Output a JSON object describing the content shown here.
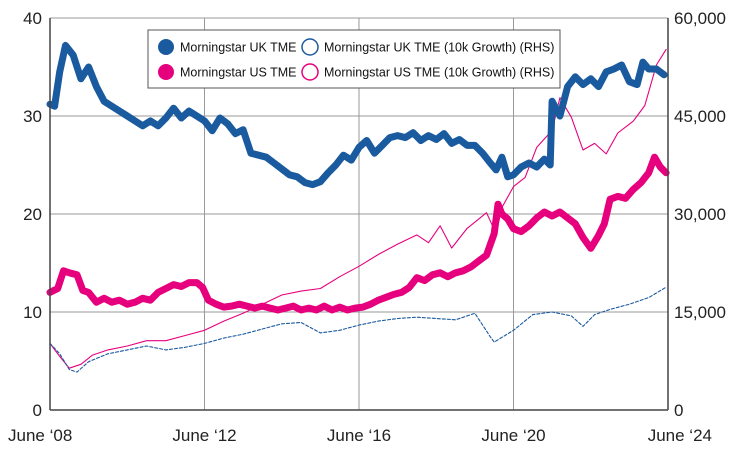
{
  "chart_data": {
    "type": "line",
    "title": "",
    "xlabel": "",
    "ylabel_left": "",
    "ylabel_right": "",
    "x_ticks": [
      "June ‘08",
      "June ‘12",
      "June ‘16",
      "June ‘20",
      "June ‘24"
    ],
    "x_range": [
      2008.5,
      2024.5
    ],
    "y_left_ticks": [
      "0",
      "10",
      "20",
      "30",
      "40"
    ],
    "y_left_range": [
      0,
      40
    ],
    "y_right_ticks": [
      "0",
      "15,000",
      "30,000",
      "45,000",
      "60,000"
    ],
    "y_right_range": [
      0,
      60000
    ],
    "grid": "vertical and horizontal",
    "legend_position": "top-center",
    "series": [
      {
        "name": "Morningstar UK TME",
        "axis": "left",
        "style": "thick",
        "color": "#1a5a9e",
        "legend_marker": "filled-circle",
        "points": [
          [
            2008.5,
            31.2
          ],
          [
            2008.62,
            31.0
          ],
          [
            2008.75,
            34.5
          ],
          [
            2008.9,
            37.2
          ],
          [
            2009.1,
            36.2
          ],
          [
            2009.3,
            33.8
          ],
          [
            2009.5,
            35.0
          ],
          [
            2009.7,
            33.0
          ],
          [
            2009.9,
            31.5
          ],
          [
            2010.1,
            31.0
          ],
          [
            2010.3,
            30.5
          ],
          [
            2010.5,
            30.0
          ],
          [
            2010.7,
            29.5
          ],
          [
            2010.9,
            29.0
          ],
          [
            2011.1,
            29.5
          ],
          [
            2011.3,
            29.0
          ],
          [
            2011.5,
            29.8
          ],
          [
            2011.7,
            30.8
          ],
          [
            2011.9,
            29.8
          ],
          [
            2012.1,
            30.5
          ],
          [
            2012.3,
            30.0
          ],
          [
            2012.5,
            29.5
          ],
          [
            2012.7,
            28.5
          ],
          [
            2012.9,
            29.8
          ],
          [
            2013.1,
            29.2
          ],
          [
            2013.3,
            28.2
          ],
          [
            2013.5,
            28.6
          ],
          [
            2013.7,
            26.2
          ],
          [
            2013.9,
            26.0
          ],
          [
            2014.1,
            25.8
          ],
          [
            2014.3,
            25.2
          ],
          [
            2014.5,
            24.6
          ],
          [
            2014.7,
            24.0
          ],
          [
            2014.9,
            23.8
          ],
          [
            2015.1,
            23.2
          ],
          [
            2015.3,
            23.0
          ],
          [
            2015.5,
            23.3
          ],
          [
            2015.7,
            24.2
          ],
          [
            2015.9,
            25.0
          ],
          [
            2016.1,
            26.0
          ],
          [
            2016.3,
            25.5
          ],
          [
            2016.5,
            26.8
          ],
          [
            2016.7,
            27.5
          ],
          [
            2016.9,
            26.2
          ],
          [
            2017.1,
            27.0
          ],
          [
            2017.3,
            27.8
          ],
          [
            2017.5,
            28.0
          ],
          [
            2017.7,
            27.8
          ],
          [
            2017.9,
            28.3
          ],
          [
            2018.1,
            27.5
          ],
          [
            2018.3,
            28.0
          ],
          [
            2018.5,
            27.6
          ],
          [
            2018.7,
            28.2
          ],
          [
            2018.9,
            27.2
          ],
          [
            2019.1,
            27.6
          ],
          [
            2019.3,
            27.0
          ],
          [
            2019.5,
            27.0
          ],
          [
            2019.7,
            26.2
          ],
          [
            2019.9,
            25.2
          ],
          [
            2020.05,
            24.5
          ],
          [
            2020.2,
            25.8
          ],
          [
            2020.35,
            23.8
          ],
          [
            2020.5,
            24.0
          ],
          [
            2020.7,
            24.8
          ],
          [
            2020.9,
            25.2
          ],
          [
            2021.1,
            24.8
          ],
          [
            2021.3,
            25.6
          ],
          [
            2021.45,
            25.0
          ],
          [
            2021.5,
            31.5
          ],
          [
            2021.7,
            30.0
          ],
          [
            2021.9,
            33.0
          ],
          [
            2022.1,
            34.0
          ],
          [
            2022.3,
            33.2
          ],
          [
            2022.5,
            33.8
          ],
          [
            2022.7,
            33.0
          ],
          [
            2022.9,
            34.5
          ],
          [
            2023.1,
            34.8
          ],
          [
            2023.3,
            35.2
          ],
          [
            2023.5,
            33.5
          ],
          [
            2023.7,
            33.2
          ],
          [
            2023.85,
            35.5
          ],
          [
            2024.0,
            34.8
          ],
          [
            2024.2,
            34.8
          ],
          [
            2024.4,
            34.2
          ]
        ]
      },
      {
        "name": "Morningstar US TME",
        "axis": "left",
        "style": "thick",
        "color": "#e6007e",
        "legend_marker": "filled-circle",
        "points": [
          [
            2008.5,
            12.0
          ],
          [
            2008.7,
            12.4
          ],
          [
            2008.85,
            14.2
          ],
          [
            2009.0,
            14.0
          ],
          [
            2009.2,
            13.8
          ],
          [
            2009.35,
            12.2
          ],
          [
            2009.5,
            12.0
          ],
          [
            2009.7,
            11.0
          ],
          [
            2009.9,
            11.4
          ],
          [
            2010.1,
            11.0
          ],
          [
            2010.3,
            11.2
          ],
          [
            2010.5,
            10.8
          ],
          [
            2010.7,
            11.0
          ],
          [
            2010.9,
            11.4
          ],
          [
            2011.1,
            11.2
          ],
          [
            2011.3,
            12.0
          ],
          [
            2011.5,
            12.4
          ],
          [
            2011.7,
            12.8
          ],
          [
            2011.9,
            12.6
          ],
          [
            2012.1,
            13.0
          ],
          [
            2012.3,
            13.0
          ],
          [
            2012.45,
            12.5
          ],
          [
            2012.6,
            11.2
          ],
          [
            2012.8,
            10.8
          ],
          [
            2013.0,
            10.5
          ],
          [
            2013.2,
            10.6
          ],
          [
            2013.4,
            10.8
          ],
          [
            2013.6,
            10.6
          ],
          [
            2013.8,
            10.4
          ],
          [
            2014.0,
            10.6
          ],
          [
            2014.2,
            10.4
          ],
          [
            2014.4,
            10.2
          ],
          [
            2014.6,
            10.4
          ],
          [
            2014.8,
            10.6
          ],
          [
            2015.0,
            10.2
          ],
          [
            2015.2,
            10.4
          ],
          [
            2015.4,
            10.2
          ],
          [
            2015.6,
            10.6
          ],
          [
            2015.8,
            10.2
          ],
          [
            2016.0,
            10.5
          ],
          [
            2016.2,
            10.2
          ],
          [
            2016.4,
            10.4
          ],
          [
            2016.6,
            10.5
          ],
          [
            2016.8,
            10.8
          ],
          [
            2017.0,
            11.2
          ],
          [
            2017.2,
            11.5
          ],
          [
            2017.4,
            11.8
          ],
          [
            2017.6,
            12.0
          ],
          [
            2017.8,
            12.5
          ],
          [
            2018.0,
            13.5
          ],
          [
            2018.2,
            13.2
          ],
          [
            2018.4,
            13.8
          ],
          [
            2018.6,
            14.0
          ],
          [
            2018.8,
            13.6
          ],
          [
            2019.0,
            14.0
          ],
          [
            2019.2,
            14.2
          ],
          [
            2019.4,
            14.6
          ],
          [
            2019.6,
            15.2
          ],
          [
            2019.8,
            15.8
          ],
          [
            2020.0,
            18.0
          ],
          [
            2020.1,
            21.0
          ],
          [
            2020.2,
            20.0
          ],
          [
            2020.35,
            19.5
          ],
          [
            2020.5,
            18.5
          ],
          [
            2020.7,
            18.2
          ],
          [
            2020.9,
            18.8
          ],
          [
            2021.1,
            19.6
          ],
          [
            2021.3,
            20.2
          ],
          [
            2021.5,
            19.8
          ],
          [
            2021.7,
            20.2
          ],
          [
            2021.9,
            19.6
          ],
          [
            2022.1,
            19.0
          ],
          [
            2022.3,
            17.6
          ],
          [
            2022.5,
            16.5
          ],
          [
            2022.7,
            17.8
          ],
          [
            2022.85,
            19.0
          ],
          [
            2023.0,
            21.5
          ],
          [
            2023.2,
            21.8
          ],
          [
            2023.4,
            21.6
          ],
          [
            2023.6,
            22.5
          ],
          [
            2023.8,
            23.2
          ],
          [
            2024.0,
            24.2
          ],
          [
            2024.15,
            25.8
          ],
          [
            2024.3,
            24.8
          ],
          [
            2024.45,
            24.2
          ]
        ]
      },
      {
        "name": "Morningstar UK TME (10k Growth) (RHS)",
        "axis": "right",
        "style": "thin-dashed",
        "color": "#1a5a9e",
        "legend_marker": "open-circle",
        "points": [
          [
            2008.5,
            10200
          ],
          [
            2008.75,
            8600
          ],
          [
            2009.0,
            6200
          ],
          [
            2009.2,
            5800
          ],
          [
            2009.5,
            7400
          ],
          [
            2010.0,
            8600
          ],
          [
            2010.5,
            9200
          ],
          [
            2011.0,
            9800
          ],
          [
            2011.5,
            9200
          ],
          [
            2012.0,
            9600
          ],
          [
            2012.5,
            10200
          ],
          [
            2013.0,
            11000
          ],
          [
            2013.5,
            11600
          ],
          [
            2014.0,
            12400
          ],
          [
            2014.5,
            13200
          ],
          [
            2015.0,
            13400
          ],
          [
            2015.5,
            11800
          ],
          [
            2016.0,
            12200
          ],
          [
            2016.5,
            13000
          ],
          [
            2017.0,
            13600
          ],
          [
            2017.5,
            14000
          ],
          [
            2018.0,
            14200
          ],
          [
            2018.5,
            14000
          ],
          [
            2019.0,
            13800
          ],
          [
            2019.5,
            14800
          ],
          [
            2019.9,
            11200
          ],
          [
            2020.0,
            10400
          ],
          [
            2020.5,
            12200
          ],
          [
            2021.0,
            14600
          ],
          [
            2021.5,
            15000
          ],
          [
            2022.0,
            14400
          ],
          [
            2022.3,
            12800
          ],
          [
            2022.6,
            14600
          ],
          [
            2023.0,
            15400
          ],
          [
            2023.5,
            16200
          ],
          [
            2024.0,
            17200
          ],
          [
            2024.45,
            18800
          ]
        ]
      },
      {
        "name": "Morningstar US TME  (10k Growth) (RHS)",
        "axis": "right",
        "style": "thin",
        "color": "#e6007e",
        "legend_marker": "open-circle",
        "points": [
          [
            2008.5,
            10200
          ],
          [
            2008.75,
            8200
          ],
          [
            2009.0,
            6400
          ],
          [
            2009.3,
            7000
          ],
          [
            2009.6,
            8400
          ],
          [
            2010.0,
            9200
          ],
          [
            2010.5,
            9800
          ],
          [
            2011.0,
            10600
          ],
          [
            2011.5,
            10600
          ],
          [
            2012.0,
            11400
          ],
          [
            2012.5,
            12200
          ],
          [
            2013.0,
            13600
          ],
          [
            2013.5,
            14800
          ],
          [
            2014.0,
            16200
          ],
          [
            2014.5,
            17600
          ],
          [
            2015.0,
            18200
          ],
          [
            2015.5,
            18600
          ],
          [
            2016.0,
            20400
          ],
          [
            2016.5,
            22000
          ],
          [
            2017.0,
            23800
          ],
          [
            2017.5,
            25400
          ],
          [
            2018.0,
            26800
          ],
          [
            2018.3,
            25600
          ],
          [
            2018.6,
            28200
          ],
          [
            2018.9,
            24800
          ],
          [
            2019.3,
            27800
          ],
          [
            2019.8,
            30200
          ],
          [
            2020.05,
            27000
          ],
          [
            2020.2,
            31000
          ],
          [
            2020.5,
            34200
          ],
          [
            2020.8,
            35600
          ],
          [
            2021.1,
            40200
          ],
          [
            2021.5,
            42800
          ],
          [
            2021.7,
            47800
          ],
          [
            2022.0,
            44800
          ],
          [
            2022.3,
            39800
          ],
          [
            2022.6,
            40800
          ],
          [
            2022.9,
            39200
          ],
          [
            2023.2,
            42400
          ],
          [
            2023.6,
            44200
          ],
          [
            2023.9,
            46600
          ],
          [
            2024.2,
            52800
          ],
          [
            2024.45,
            55200
          ]
        ]
      }
    ]
  }
}
